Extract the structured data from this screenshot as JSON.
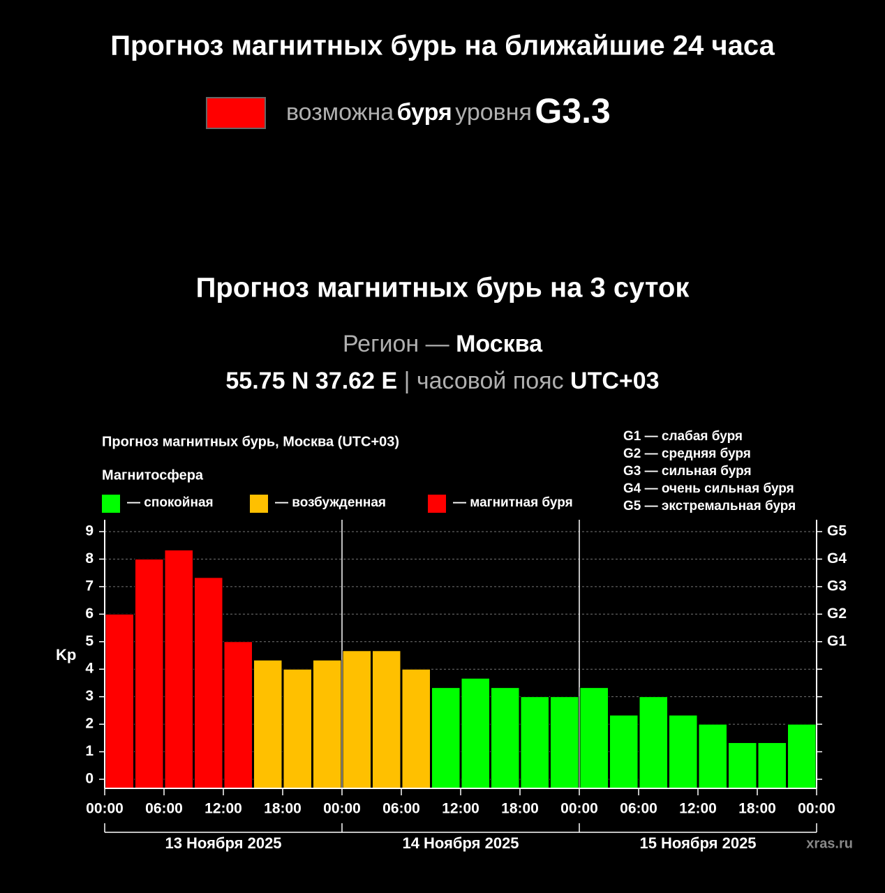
{
  "header": {
    "title": "Прогноз магнитных бурь на ближайшие 24 часа",
    "forecast": {
      "color": "#ff0000",
      "parts": [
        "возможна",
        "буря",
        "уровня",
        "G3.3"
      ]
    }
  },
  "section": {
    "title": "Прогноз магнитных бурь на 3 суток",
    "region": [
      "Регион —",
      "Москва"
    ],
    "location": [
      "55.75 N 37.62 E",
      "|",
      "часовой пояс",
      "UTC+03"
    ]
  },
  "chart_data": {
    "type": "bar",
    "title": "Прогноз магнитных бурь, Москва (UTC+03)",
    "legend_title": "Магнитосфера",
    "legend": [
      {
        "name": "— спокойная",
        "color": "#00ff00"
      },
      {
        "name": "— возбужденная",
        "color": "#ffc000"
      },
      {
        "name": "— магнитная буря",
        "color": "#ff0000"
      }
    ],
    "g_levels": [
      "G1 — слабая буря",
      "G2 — средняя буря",
      "G3 — сильная буря",
      "G4 — очень сильная буря",
      "G5 — экстремальная буря"
    ],
    "y_label": "Kp",
    "x": [
      1.5,
      4.5,
      7.5,
      10.5,
      13.5,
      16.5,
      19.5,
      22.5,
      25.5,
      28.5,
      31.5,
      34.5,
      37.5,
      40.5,
      43.5,
      46.5,
      49.5,
      52.5,
      55.5,
      58.5,
      61.5,
      64.5,
      67.5,
      70.5
    ],
    "values": [
      6.0,
      8.0,
      8.33,
      7.33,
      5.0,
      4.33,
      4.0,
      4.33,
      4.67,
      4.67,
      4.0,
      3.33,
      3.67,
      3.33,
      3.0,
      3.0,
      3.33,
      2.33,
      3.0,
      2.33,
      2.0,
      1.33,
      1.33,
      2.0
    ],
    "colors": [
      "#ff0000",
      "#ff0000",
      "#ff0000",
      "#ff0000",
      "#ff0000",
      "#ffc000",
      "#ffc000",
      "#ffc000",
      "#ffc000",
      "#ffc000",
      "#ffc000",
      "#00ff00",
      "#00ff00",
      "#00ff00",
      "#00ff00",
      "#00ff00",
      "#00ff00",
      "#00ff00",
      "#00ff00",
      "#00ff00",
      "#00ff00",
      "#00ff00",
      "#00ff00",
      "#00ff00"
    ],
    "bar_width": 3,
    "xlim": [
      0,
      72
    ],
    "xticks": [
      {
        "value": 0,
        "label": "00:00"
      },
      {
        "value": 6,
        "label": "06:00"
      },
      {
        "value": 12,
        "label": "12:00"
      },
      {
        "value": 18,
        "label": "18:00"
      },
      {
        "value": 24,
        "label": "00:00"
      },
      {
        "value": 30,
        "label": "06:00"
      },
      {
        "value": 36,
        "label": "12:00"
      },
      {
        "value": 42,
        "label": "18:00"
      },
      {
        "value": 48,
        "label": "00:00"
      },
      {
        "value": 54,
        "label": "06:00"
      },
      {
        "value": 60,
        "label": "12:00"
      },
      {
        "value": 66,
        "label": "18:00"
      },
      {
        "value": 72,
        "label": "00:00"
      }
    ],
    "days": [
      "13 Ноября 2025",
      "14 Ноября 2025",
      "15 Ноября 2025"
    ],
    "day_bounds": [
      0,
      24,
      48,
      72
    ],
    "ylim": [
      -0.33,
      9.43
    ],
    "yticks": [
      0,
      1,
      2,
      3,
      4,
      5,
      6,
      7,
      8,
      9
    ],
    "y2ticks": [
      {
        "value": 5,
        "label": "G1"
      },
      {
        "value": 6,
        "label": "G2"
      },
      {
        "value": 7,
        "label": "G3"
      },
      {
        "value": 8,
        "label": "G4"
      },
      {
        "value": 9,
        "label": "G5"
      }
    ],
    "grid": true,
    "watermark": "xras.ru"
  }
}
